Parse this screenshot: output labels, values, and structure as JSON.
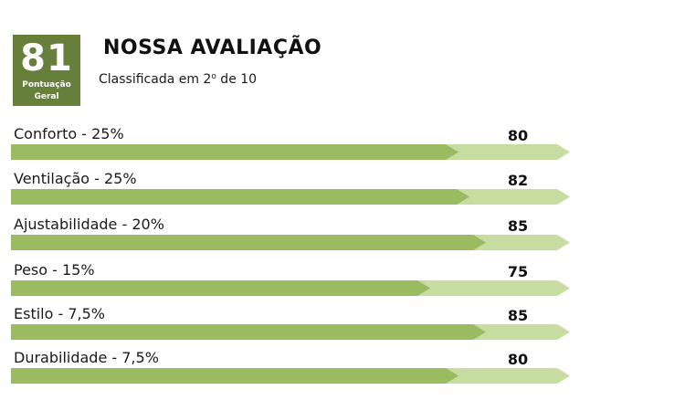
{
  "summary": {
    "overall_score": "81",
    "overall_label_line1": "Pontuação",
    "overall_label_line2": "Geral",
    "title": "NOSSA AVALIAÇÃO",
    "rank_prefix": "Classificada em 2",
    "rank_ordinal": "o",
    "rank_suffix": " de 10"
  },
  "colors": {
    "score_box": "#66803c",
    "bar_fill": "#9bbb62",
    "bar_track": "#c7dca0"
  },
  "criteria": [
    {
      "label": "Conforto - 25%",
      "score": "80",
      "value": 80
    },
    {
      "label": "Ventilação - 25%",
      "score": "82",
      "value": 82
    },
    {
      "label": "Ajustabilidade - 20%",
      "score": "85",
      "value": 85
    },
    {
      "label": "Peso - 15%",
      "score": "75",
      "value": 75
    },
    {
      "label": "Estilo - 7,5%",
      "score": "85",
      "value": 85
    },
    {
      "label": "Durabilidade - 7,5%",
      "score": "80",
      "value": 80
    }
  ]
}
